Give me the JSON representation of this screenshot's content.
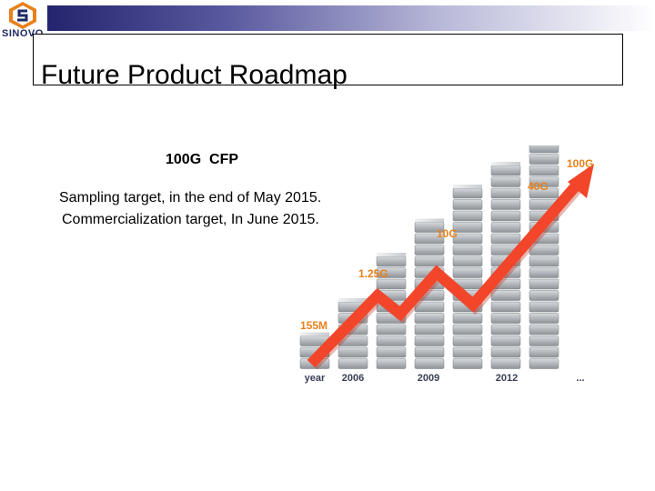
{
  "header": {
    "accent_colors": [
      "#24246e",
      "#5a5aa0",
      "#b9b9d9"
    ]
  },
  "logo": {
    "text": "SINOVO",
    "icon": "sinovo-logo-icon"
  },
  "slide": {
    "title": "Future Product Roadmap",
    "product": "100G  CFP",
    "line1": "Sampling target, in the end of May 2015.",
    "line2": "Commercialization target, In June 2015."
  },
  "chart_data": {
    "type": "bar",
    "title": "",
    "categories": [
      "year",
      "2006",
      "2009",
      "2012",
      "..."
    ],
    "bar_stack_heights": [
      3,
      6,
      10,
      13,
      16,
      18,
      20
    ],
    "speed_labels": [
      "155M",
      "1.25G",
      "10G",
      "40G",
      "100G"
    ],
    "trend": "rising",
    "colors": {
      "label": "#e8811b",
      "arrow": "#f2452a",
      "bar": "#9fa3a8"
    }
  }
}
